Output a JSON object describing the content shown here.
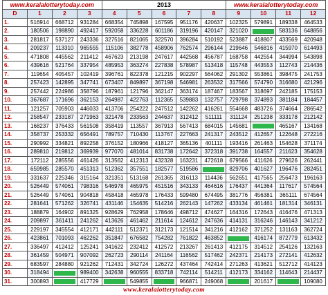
{
  "header": {
    "site_left": "www.keralalotterytoday.com",
    "year": "2013",
    "site_right": "www.keralalotterytoday.com"
  },
  "columns": [
    "D",
    "1",
    "2",
    "3",
    "4",
    "5",
    "6",
    "7",
    "8",
    "9",
    "10",
    "11",
    "12"
  ],
  "rows": [
    {
      "day": "1.",
      "values": [
        "516914",
        "668712",
        "931284",
        "668354",
        "745898",
        "167595",
        "951176",
        "420637",
        "102325",
        "579891",
        "189338",
        "464533"
      ]
    },
    {
      "day": "2.",
      "values": [
        "180506",
        "198890",
        "492417",
        "592058",
        "336228",
        "601186",
        "319196",
        "420147",
        "321020",
        "",
        "583136",
        "648856"
      ]
    },
    {
      "day": "3.",
      "values": [
        "281817",
        "537127",
        "243336",
        "327516",
        "821065",
        "322570",
        "396284",
        "510192",
        "523887",
        "418807",
        "433569",
        "420948"
      ]
    },
    {
      "day": "4.",
      "values": [
        "209237",
        "113310",
        "965555",
        "115106",
        "382778",
        "458906",
        "762574",
        "296144",
        "219646",
        "546816",
        "415970",
        "614493"
      ]
    },
    {
      "day": "5.",
      "values": [
        "471808",
        "445562",
        "211412",
        "467623",
        "213198",
        "247617",
        "442568",
        "456787",
        "168758",
        "442554",
        "344994",
        "543898"
      ]
    },
    {
      "day": "6.",
      "values": [
        "439616",
        "521764",
        "337954",
        "485953",
        "363274",
        "227838",
        "578987",
        "513418",
        "115748",
        "443553",
        "112743",
        "214436"
      ]
    },
    {
      "day": "7.",
      "values": [
        "119654",
        "405457",
        "102419",
        "396761",
        "822378",
        "121215",
        "902297",
        "564062",
        "291302",
        "553861",
        "398475",
        "241753"
      ]
    },
    {
      "day": "8.",
      "values": [
        "257423",
        "142895",
        "347741",
        "673407",
        "849897",
        "367198",
        "546981",
        "263532",
        "317566",
        "574790",
        "316680",
        "421296"
      ]
    },
    {
      "day": "9.",
      "values": [
        "257442",
        "224986",
        "358796",
        "187961",
        "121796",
        "362147",
        "363174",
        "187467",
        "183567",
        "318697",
        "242185",
        "175153"
      ]
    },
    {
      "day": "10.",
      "values": [
        "367687",
        "171696",
        "362153",
        "264987",
        "422763",
        "112365",
        "539883",
        "132757",
        "729798",
        "374893",
        "381184",
        "184457"
      ]
    },
    {
      "day": "11.",
      "values": [
        "121257",
        "705903",
        "446033",
        "413706",
        "254222",
        "247512",
        "142262",
        "416261",
        "554668",
        "483726",
        "374664",
        "286542"
      ]
    },
    {
      "day": "12.",
      "values": [
        "258547",
        "233187",
        "271963",
        "321478",
        "233563",
        "244637",
        "312412",
        "511111",
        "311124",
        "251238",
        "333178",
        "212142"
      ]
    },
    {
      "day": "13.",
      "values": [
        "168237",
        "376433",
        "561508",
        "358419",
        "113557",
        "367913",
        "567413",
        "684015",
        "145681",
        "",
        "465167",
        "134168"
      ]
    },
    {
      "day": "14.",
      "values": [
        "358737",
        "253332",
        "656491",
        "789757",
        "710430",
        "113767",
        "227663",
        "241317",
        "243512",
        "412657",
        "122648",
        "272216"
      ]
    },
    {
      "day": "15.",
      "values": [
        "290992",
        "334821",
        "892258",
        "376152",
        "180966",
        "418127",
        "365136",
        "401111",
        "193416",
        "261463",
        "154628",
        "371174"
      ]
    },
    {
      "day": "16.",
      "values": [
        "289810",
        "219812",
        "369939",
        "977070",
        "481014",
        "831738",
        "172642",
        "372318",
        "391738",
        "164557",
        "211623",
        "354628"
      ]
    },
    {
      "day": "17.",
      "values": [
        "172112",
        "285556",
        "461426",
        "313562",
        "412313",
        "432328",
        "163231",
        "472618",
        "679566",
        "411626",
        "279626",
        "262441"
      ]
    },
    {
      "day": "18.",
      "values": [
        "659985",
        "285570",
        "451313",
        "512362",
        "357551",
        "182577",
        "519586",
        "",
        "829706",
        "401627",
        "196476",
        "282451"
      ]
    },
    {
      "day": "19.",
      "values": [
        "331637",
        "225346",
        "315164",
        "321351",
        "513168",
        "261365",
        "316113",
        "114436",
        "562651",
        "417565",
        "256473",
        "196163"
      ]
    },
    {
      "day": "20.",
      "values": [
        "526449",
        "574061",
        "798316",
        "546978",
        "465975",
        "451516",
        "343133",
        "464616",
        "176437",
        "441364",
        "117617",
        "574564"
      ]
    },
    {
      "day": "21.",
      "values": [
        "526449",
        "574061",
        "904818",
        "458418",
        "465978",
        "176433",
        "599480",
        "674495",
        "381776",
        "456381",
        "365111",
        "674564"
      ]
    },
    {
      "day": "22.",
      "values": [
        "281641",
        "571262",
        "326741",
        "431146",
        "154635",
        "514216",
        "262143",
        "147262",
        "433134",
        "461461",
        "181314",
        "346131"
      ]
    },
    {
      "day": "23.",
      "values": [
        "188879",
        "164902",
        "891325",
        "928629",
        "762958",
        "178646",
        "498712",
        "474627",
        "164316",
        "172643",
        "416476",
        "471313"
      ]
    },
    {
      "day": "24.",
      "values": [
        "209897",
        "361411",
        "241262",
        "413626",
        "461462",
        "211614",
        "124612",
        "247636",
        "414131",
        "316246",
        "146143",
        "341212"
      ]
    },
    {
      "day": "25.",
      "values": [
        "229197",
        "345554",
        "412171",
        "442111",
        "512371",
        "312173",
        "121514",
        "341216",
        "412162",
        "371252",
        "131163",
        "362724"
      ]
    },
    {
      "day": "26.",
      "values": [
        "423861",
        "701093",
        "462262",
        "351847",
        "676582",
        "754282",
        "761822",
        "463852",
        "",
        "416174",
        "872779",
        "613432"
      ]
    },
    {
      "day": "27.",
      "values": [
        "336497",
        "412412",
        "125241",
        "341622",
        "232412",
        "412572",
        "213267",
        "261413",
        "412175",
        "314512",
        "254126",
        "132163"
      ]
    },
    {
      "day": "28.",
      "values": [
        "361459",
        "504971",
        "907092",
        "262723",
        "290114",
        "241164",
        "116562",
        "517462",
        "242371",
        "214173",
        "272141",
        "412632"
      ]
    },
    {
      "day": "29.",
      "values": [
        "683597",
        "284880",
        "921262",
        "712431",
        "342724",
        "126272",
        "437464",
        "742414",
        "271263",
        "413621",
        "512712",
        "414123"
      ]
    },
    {
      "day": "30.",
      "values": [
        "318494",
        "",
        "989400",
        "342638",
        "960555",
        "833718",
        "742114",
        "514211",
        "412173",
        "334162",
        "114643",
        "214437"
      ]
    },
    {
      "day": "31.",
      "values": [
        "300893",
        "",
        "417729",
        "",
        "549855",
        "",
        "966871",
        "249068",
        "",
        "201617",
        "",
        "109080"
      ]
    }
  ],
  "footer": {
    "site": "www.keralalotterytoday.com"
  },
  "colors": {
    "accent_red": "#c00000",
    "blank_marker_green": "#2eb84b",
    "header_bg": "#d8e4f0"
  }
}
